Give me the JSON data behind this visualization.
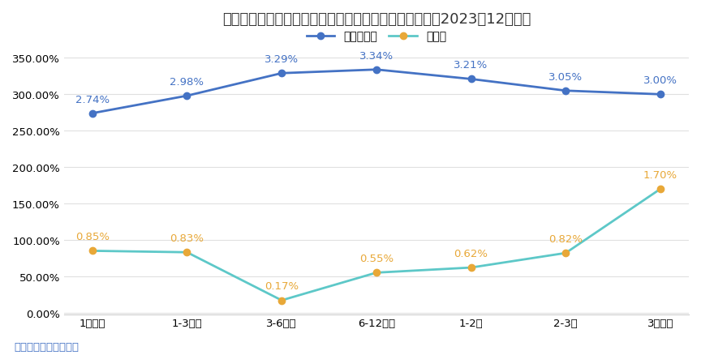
{
  "title": "理财公司不同投资周期公募产品今年以来业绩表现（截至2023年12月末）",
  "categories": [
    "1月以内",
    "1-3个月",
    "3-6个月",
    "6-12个月",
    "1-2年",
    "2-3年",
    "3年以上"
  ],
  "fixed_income": [
    2.74,
    2.98,
    3.29,
    3.34,
    3.21,
    3.05,
    3.0
  ],
  "mixed": [
    0.85,
    0.83,
    0.17,
    0.55,
    0.62,
    0.82,
    1.7
  ],
  "fixed_income_color": "#4472C4",
  "mixed_marker_color": "#E8A838",
  "mixed_line_color": "#5DC8C8",
  "legend_fixed": "固定收益类",
  "legend_mixed": "混合类",
  "source": "数据来源：南财理财通",
  "ylim_min": 0.0,
  "ylim_max": 3.5,
  "yticks": [
    0.0,
    0.5,
    1.0,
    1.5,
    2.0,
    2.5,
    3.0,
    3.5
  ],
  "background_color": "#ffffff",
  "title_fontsize": 13,
  "label_fontsize": 9.5,
  "tick_fontsize": 9.5,
  "source_fontsize": 9.5,
  "source_color": "#4472C4"
}
